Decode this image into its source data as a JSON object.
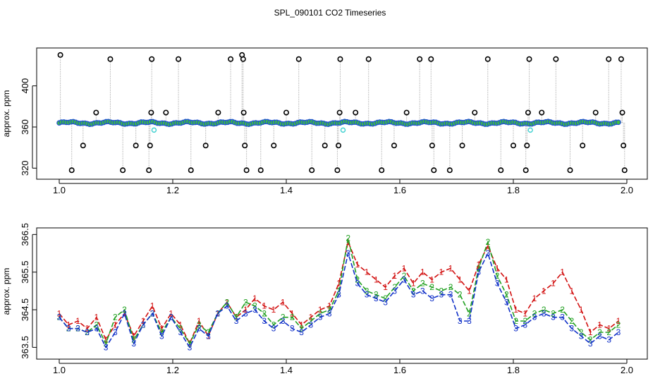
{
  "chart_data": [
    {
      "type": "scatter",
      "title": "SPL_090101  CO2 Timeseries",
      "xlabel": "",
      "ylabel": "approx. ppm",
      "xlim": [
        1.0,
        2.0
      ],
      "ylim": [
        312,
        432
      ],
      "x_ticks": [
        1.0,
        1.2,
        1.4,
        1.6,
        1.8,
        2.0
      ],
      "x_tick_labels": [
        "1.0",
        "1.2",
        "1.4",
        "1.6",
        "1.8",
        "2.0"
      ],
      "y_ticks": [
        320,
        360,
        400
      ],
      "y_tick_labels": [
        "320",
        "360",
        "400"
      ],
      "colors": {
        "baseline": "#1f4fd6",
        "baseline_dot": "#3fbf3f",
        "spike": "#000000",
        "cyan": "#40d0d0",
        "drop_line": "#9a9a9a"
      },
      "baseline_level": 364,
      "spikes": [
        {
          "x": 1.002,
          "y": 430
        },
        {
          "x": 1.022,
          "y": 318
        },
        {
          "x": 1.042,
          "y": 342
        },
        {
          "x": 1.065,
          "y": 374
        },
        {
          "x": 1.09,
          "y": 426
        },
        {
          "x": 1.112,
          "y": 318
        },
        {
          "x": 1.135,
          "y": 342
        },
        {
          "x": 1.158,
          "y": 318
        },
        {
          "x": 1.16,
          "y": 342
        },
        {
          "x": 1.162,
          "y": 374
        },
        {
          "x": 1.163,
          "y": 426
        },
        {
          "x": 1.188,
          "y": 374
        },
        {
          "x": 1.21,
          "y": 426
        },
        {
          "x": 1.232,
          "y": 318
        },
        {
          "x": 1.258,
          "y": 342
        },
        {
          "x": 1.28,
          "y": 374
        },
        {
          "x": 1.302,
          "y": 426
        },
        {
          "x": 1.322,
          "y": 430
        },
        {
          "x": 1.324,
          "y": 426
        },
        {
          "x": 1.325,
          "y": 374
        },
        {
          "x": 1.327,
          "y": 342
        },
        {
          "x": 1.33,
          "y": 318
        },
        {
          "x": 1.355,
          "y": 318
        },
        {
          "x": 1.378,
          "y": 342
        },
        {
          "x": 1.4,
          "y": 374
        },
        {
          "x": 1.422,
          "y": 426
        },
        {
          "x": 1.445,
          "y": 318
        },
        {
          "x": 1.468,
          "y": 342
        },
        {
          "x": 1.49,
          "y": 318
        },
        {
          "x": 1.492,
          "y": 342
        },
        {
          "x": 1.494,
          "y": 374
        },
        {
          "x": 1.495,
          "y": 426
        },
        {
          "x": 1.522,
          "y": 374
        },
        {
          "x": 1.545,
          "y": 426
        },
        {
          "x": 1.568,
          "y": 318
        },
        {
          "x": 1.59,
          "y": 342
        },
        {
          "x": 1.612,
          "y": 374
        },
        {
          "x": 1.635,
          "y": 426
        },
        {
          "x": 1.655,
          "y": 426
        },
        {
          "x": 1.657,
          "y": 342
        },
        {
          "x": 1.66,
          "y": 318
        },
        {
          "x": 1.688,
          "y": 318
        },
        {
          "x": 1.71,
          "y": 342
        },
        {
          "x": 1.732,
          "y": 374
        },
        {
          "x": 1.755,
          "y": 426
        },
        {
          "x": 1.778,
          "y": 318
        },
        {
          "x": 1.8,
          "y": 342
        },
        {
          "x": 1.822,
          "y": 318
        },
        {
          "x": 1.824,
          "y": 342
        },
        {
          "x": 1.826,
          "y": 374
        },
        {
          "x": 1.828,
          "y": 426
        },
        {
          "x": 1.85,
          "y": 374
        },
        {
          "x": 1.875,
          "y": 426
        },
        {
          "x": 1.9,
          "y": 318
        },
        {
          "x": 1.922,
          "y": 342
        },
        {
          "x": 1.945,
          "y": 374
        },
        {
          "x": 1.968,
          "y": 426
        },
        {
          "x": 1.99,
          "y": 426
        },
        {
          "x": 1.992,
          "y": 374
        },
        {
          "x": 1.994,
          "y": 342
        },
        {
          "x": 1.996,
          "y": 318
        }
      ],
      "cyan_points": [
        {
          "x": 1.167,
          "y": 357
        },
        {
          "x": 1.5,
          "y": 357
        },
        {
          "x": 1.83,
          "y": 357
        }
      ]
    },
    {
      "type": "line",
      "title": "",
      "xlabel": "",
      "ylabel": "approx. ppm",
      "xlim": [
        1.0,
        2.0
      ],
      "ylim": [
        363.3,
        366.6
      ],
      "x_ticks": [
        1.0,
        1.2,
        1.4,
        1.6,
        1.8,
        2.0
      ],
      "x_tick_labels": [
        "1.0",
        "1.2",
        "1.4",
        "1.6",
        "1.8",
        "2.0"
      ],
      "y_ticks": [
        363.5,
        364.5,
        365.5,
        366.5
      ],
      "y_tick_labels": [
        "363.5",
        "364.5",
        "365.5",
        "366.5"
      ],
      "x_range": [
        1.0,
        1.985
      ],
      "series": [
        {
          "name": "1",
          "marker": "1",
          "color": "#d21010",
          "values": [
            364.4,
            364.1,
            364.2,
            364.0,
            364.3,
            363.7,
            364.1,
            364.4,
            363.8,
            364.2,
            364.6,
            364.0,
            364.4,
            364.1,
            363.6,
            364.2,
            363.8,
            364.4,
            364.7,
            364.3,
            364.5,
            364.8,
            364.6,
            364.5,
            364.7,
            364.4,
            364.1,
            364.3,
            364.5,
            364.6,
            365.2,
            366.3,
            365.7,
            365.5,
            365.3,
            365.1,
            365.4,
            365.6,
            365.2,
            365.5,
            365.3,
            365.5,
            365.6,
            365.3,
            365.0,
            365.7,
            366.2,
            365.6,
            365.3,
            364.5,
            364.4,
            364.8,
            365.0,
            365.2,
            365.5,
            365.0,
            364.5,
            363.9,
            364.1,
            364.0,
            364.2
          ]
        },
        {
          "name": "2",
          "marker": "2",
          "color": "#20a020",
          "values": [
            364.3,
            364.0,
            364.0,
            363.9,
            364.1,
            363.6,
            364.3,
            364.5,
            363.7,
            364.1,
            364.4,
            363.9,
            364.3,
            364.0,
            363.6,
            364.1,
            363.9,
            364.4,
            364.7,
            364.3,
            364.7,
            364.6,
            364.4,
            364.1,
            364.3,
            364.3,
            364.0,
            364.2,
            364.4,
            364.5,
            365.0,
            366.4,
            365.3,
            365.0,
            364.9,
            364.8,
            365.1,
            365.4,
            365.0,
            365.2,
            365.1,
            365.0,
            365.1,
            364.9,
            364.4,
            365.6,
            366.3,
            365.4,
            364.9,
            364.2,
            364.2,
            364.4,
            364.5,
            364.4,
            364.5,
            364.2,
            363.9,
            363.7,
            363.9,
            363.9,
            364.1
          ]
        },
        {
          "name": "3",
          "marker": "3",
          "color": "#1030c8",
          "values": [
            364.3,
            364.0,
            364.0,
            363.9,
            364.0,
            363.5,
            363.9,
            364.4,
            363.6,
            364.1,
            364.4,
            363.8,
            364.3,
            363.9,
            363.5,
            364.0,
            363.8,
            364.4,
            364.6,
            364.2,
            364.4,
            364.5,
            364.2,
            364.0,
            364.2,
            364.0,
            363.9,
            364.1,
            364.3,
            364.4,
            364.9,
            366.0,
            365.2,
            364.9,
            364.8,
            364.7,
            365.0,
            365.3,
            364.9,
            365.0,
            364.8,
            364.9,
            364.9,
            364.2,
            364.2,
            365.5,
            366.0,
            365.2,
            364.7,
            364.0,
            364.1,
            364.3,
            364.4,
            364.3,
            364.3,
            364.0,
            363.8,
            363.6,
            363.8,
            363.7,
            363.9
          ]
        }
      ]
    }
  ]
}
